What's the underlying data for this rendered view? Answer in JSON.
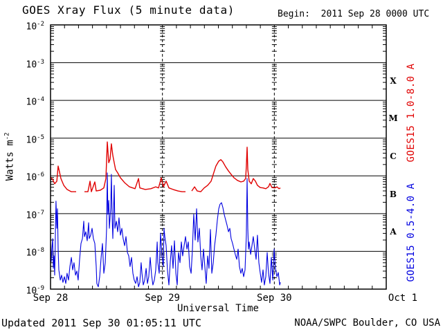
{
  "header": {
    "title": "GOES Xray Flux (5 minute data)",
    "begin_label": "Begin:  2011 Sep 28 0000 UTC"
  },
  "footer": {
    "updated": "Updated 2011 Sep 30 01:05:11 UTC",
    "credit": "NOAA/SWPC Boulder, CO USA"
  },
  "colors": {
    "long_channel": "#e00000",
    "short_channel": "#0000e0",
    "axis": "#000000",
    "background": "#ffffff"
  },
  "chart_data": {
    "type": "line",
    "title": "GOES Xray Flux (5 minute data)",
    "xlabel": "Universal Time",
    "ylabel_base": "Watts m",
    "ylabel_exp": "-2",
    "x_unit": "days since 2011 Sep 28 0000 UTC",
    "xlim": [
      0,
      3
    ],
    "ylim": [
      1e-09,
      0.01
    ],
    "y_tick_exponents": [
      -2,
      -3,
      -4,
      -5,
      -6,
      -7,
      -8,
      -9
    ],
    "x_ticks": [
      {
        "label": "Sep 28",
        "t": 0,
        "dx": 0
      },
      {
        "label": "Sep 29",
        "t": 1,
        "dx": 0
      },
      {
        "label": "Sep 30",
        "t": 2,
        "dx": 0
      },
      {
        "label": "Oct 1",
        "t": 3,
        "dx": 24
      }
    ],
    "flare_classes": [
      {
        "label": "X",
        "center_exp": -3.5
      },
      {
        "label": "M",
        "center_exp": -4.5
      },
      {
        "label": "C",
        "center_exp": -5.5
      },
      {
        "label": "B",
        "center_exp": -6.5
      },
      {
        "label": "A",
        "center_exp": -7.5
      }
    ],
    "grid": {
      "h_line_exponents": [
        -3,
        -4,
        -5,
        -6,
        -7,
        -8
      ],
      "v_dashed_t": [
        1,
        2
      ],
      "time_tick_hours": 3
    },
    "series": [
      {
        "name": "GOES15 1.0-8.0 A",
        "color": "#e00000",
        "width": 1.4,
        "points": [
          [
            0.0,
            -6.03
          ],
          [
            0.019,
            -6.1
          ],
          [
            0.037,
            -6.21
          ],
          [
            0.056,
            -6.14
          ],
          [
            0.068,
            -5.74
          ],
          [
            0.08,
            -5.89
          ],
          [
            0.093,
            -6.07
          ],
          [
            0.118,
            -6.25
          ],
          [
            0.148,
            -6.36
          ],
          [
            0.186,
            -6.42
          ],
          [
            0.229,
            -6.42
          ],
          null,
          [
            0.303,
            -6.42
          ],
          [
            0.334,
            -6.42
          ],
          [
            0.353,
            -6.14
          ],
          [
            0.365,
            -6.42
          ],
          [
            0.396,
            -6.16
          ],
          [
            0.408,
            -6.4
          ],
          [
            0.445,
            -6.38
          ],
          [
            0.476,
            -6.32
          ],
          [
            0.495,
            -6.07
          ],
          [
            0.507,
            -5.1
          ],
          [
            0.52,
            -5.65
          ],
          [
            0.532,
            -5.56
          ],
          [
            0.544,
            -5.15
          ],
          [
            0.557,
            -5.46
          ],
          [
            0.569,
            -5.65
          ],
          [
            0.581,
            -5.83
          ],
          [
            0.6,
            -5.92
          ],
          [
            0.625,
            -6.05
          ],
          [
            0.662,
            -6.18
          ],
          [
            0.705,
            -6.29
          ],
          [
            0.755,
            -6.34
          ],
          [
            0.786,
            -6.07
          ],
          [
            0.798,
            -6.32
          ],
          [
            0.847,
            -6.36
          ],
          [
            0.897,
            -6.34
          ],
          [
            0.94,
            -6.29
          ],
          [
            0.965,
            -6.32
          ],
          [
            0.99,
            -6.05
          ],
          [
            1.008,
            -6.29
          ],
          [
            1.033,
            -6.14
          ],
          [
            1.058,
            -6.32
          ],
          [
            1.095,
            -6.36
          ],
          [
            1.138,
            -6.4
          ],
          [
            1.175,
            -6.42
          ],
          [
            1.206,
            -6.42
          ],
          null,
          [
            1.262,
            -6.4
          ],
          [
            1.287,
            -6.29
          ],
          [
            1.311,
            -6.4
          ],
          [
            1.342,
            -6.42
          ],
          [
            1.373,
            -6.32
          ],
          [
            1.404,
            -6.25
          ],
          [
            1.435,
            -6.14
          ],
          [
            1.454,
            -5.96
          ],
          [
            1.478,
            -5.74
          ],
          [
            1.503,
            -5.61
          ],
          [
            1.522,
            -5.57
          ],
          [
            1.54,
            -5.63
          ],
          [
            1.565,
            -5.76
          ],
          [
            1.59,
            -5.87
          ],
          [
            1.614,
            -5.96
          ],
          [
            1.639,
            -6.05
          ],
          [
            1.67,
            -6.12
          ],
          [
            1.701,
            -6.16
          ],
          [
            1.726,
            -6.14
          ],
          [
            1.744,
            -6.07
          ],
          [
            1.75,
            -5.74
          ],
          [
            1.757,
            -5.24
          ],
          [
            1.763,
            -5.83
          ],
          [
            1.775,
            -6.14
          ],
          [
            1.794,
            -6.21
          ],
          [
            1.812,
            -6.07
          ],
          [
            1.831,
            -6.14
          ],
          [
            1.849,
            -6.25
          ],
          [
            1.874,
            -6.31
          ],
          [
            1.899,
            -6.32
          ],
          [
            1.924,
            -6.34
          ],
          [
            1.948,
            -6.29
          ],
          [
            1.961,
            -6.2
          ],
          [
            1.979,
            -6.31
          ],
          [
            2.004,
            -6.32
          ],
          [
            2.023,
            -6.29
          ],
          [
            2.041,
            -6.34
          ],
          [
            2.054,
            -6.32
          ]
        ]
      },
      {
        "name": "GOES15 0.5-4.0 A",
        "color": "#0000e0",
        "width": 1.1,
        "points": [
          [
            0.0,
            -7.79
          ],
          [
            0.006,
            -8.27
          ],
          [
            0.012,
            -7.94
          ],
          [
            0.019,
            -7.66
          ],
          [
            0.025,
            -8.45
          ],
          [
            0.031,
            -8.12
          ],
          [
            0.037,
            -8.63
          ],
          [
            0.043,
            -7.57
          ],
          [
            0.049,
            -6.67
          ],
          [
            0.056,
            -7.39
          ],
          [
            0.062,
            -6.87
          ],
          [
            0.068,
            -7.94
          ],
          [
            0.074,
            -8.49
          ],
          [
            0.087,
            -8.76
          ],
          [
            0.099,
            -8.63
          ],
          [
            0.111,
            -8.82
          ],
          [
            0.124,
            -8.67
          ],
          [
            0.136,
            -8.85
          ],
          [
            0.148,
            -8.58
          ],
          [
            0.161,
            -8.76
          ],
          [
            0.173,
            -8.4
          ],
          [
            0.186,
            -8.16
          ],
          [
            0.198,
            -8.49
          ],
          [
            0.21,
            -8.3
          ],
          [
            0.223,
            -8.63
          ],
          [
            0.235,
            -8.52
          ],
          [
            0.247,
            -8.76
          ],
          [
            0.26,
            -8.21
          ],
          [
            0.272,
            -7.79
          ],
          [
            0.285,
            -7.66
          ],
          [
            0.297,
            -7.2
          ],
          [
            0.303,
            -7.61
          ],
          [
            0.315,
            -7.48
          ],
          [
            0.328,
            -7.72
          ],
          [
            0.34,
            -7.24
          ],
          [
            0.346,
            -7.66
          ],
          [
            0.359,
            -7.57
          ],
          [
            0.371,
            -7.39
          ],
          [
            0.383,
            -7.66
          ],
          [
            0.396,
            -7.79
          ],
          [
            0.408,
            -8.4
          ],
          [
            0.414,
            -8.85
          ],
          [
            0.427,
            -8.94
          ],
          [
            0.439,
            -8.67
          ],
          [
            0.452,
            -8.16
          ],
          [
            0.464,
            -7.79
          ],
          [
            0.476,
            -8.58
          ],
          [
            0.489,
            -8.3
          ],
          [
            0.501,
            -7.39
          ],
          [
            0.507,
            -5.92
          ],
          [
            0.513,
            -7.02
          ],
          [
            0.52,
            -6.65
          ],
          [
            0.526,
            -7.39
          ],
          [
            0.538,
            -6.84
          ],
          [
            0.544,
            -5.96
          ],
          [
            0.55,
            -7.02
          ],
          [
            0.557,
            -7.66
          ],
          [
            0.569,
            -6.25
          ],
          [
            0.575,
            -7.39
          ],
          [
            0.588,
            -7.2
          ],
          [
            0.6,
            -7.48
          ],
          [
            0.612,
            -7.11
          ],
          [
            0.625,
            -7.57
          ],
          [
            0.637,
            -7.39
          ],
          [
            0.649,
            -7.66
          ],
          [
            0.662,
            -7.85
          ],
          [
            0.674,
            -7.61
          ],
          [
            0.687,
            -8.03
          ],
          [
            0.699,
            -8.12
          ],
          [
            0.711,
            -8.4
          ],
          [
            0.724,
            -8.16
          ],
          [
            0.736,
            -8.58
          ],
          [
            0.748,
            -8.76
          ],
          [
            0.761,
            -8.85
          ],
          [
            0.773,
            -8.67
          ],
          [
            0.786,
            -8.94
          ],
          [
            0.798,
            -8.82
          ],
          [
            0.81,
            -8.3
          ],
          [
            0.817,
            -8.58
          ],
          [
            0.829,
            -8.89
          ],
          [
            0.841,
            -8.76
          ],
          [
            0.854,
            -8.45
          ],
          [
            0.866,
            -8.85
          ],
          [
            0.878,
            -8.67
          ],
          [
            0.891,
            -8.16
          ],
          [
            0.903,
            -8.63
          ],
          [
            0.915,
            -8.89
          ],
          [
            0.928,
            -8.76
          ],
          [
            0.94,
            -8.49
          ],
          [
            0.953,
            -7.75
          ],
          [
            0.959,
            -8.3
          ],
          [
            0.971,
            -8.58
          ],
          [
            0.983,
            -7.52
          ],
          [
            0.996,
            -8.12
          ],
          [
            1.008,
            -8.4
          ],
          [
            1.014,
            -7.39
          ],
          [
            1.021,
            -7.61
          ],
          [
            1.033,
            -7.85
          ],
          [
            1.045,
            -8.49
          ],
          [
            1.058,
            -8.89
          ],
          [
            1.07,
            -8.27
          ],
          [
            1.082,
            -7.85
          ],
          [
            1.095,
            -8.45
          ],
          [
            1.107,
            -7.72
          ],
          [
            1.12,
            -8.58
          ],
          [
            1.132,
            -8.89
          ],
          [
            1.144,
            -8.03
          ],
          [
            1.157,
            -8.3
          ],
          [
            1.169,
            -7.75
          ],
          [
            1.181,
            -8.12
          ],
          [
            1.194,
            -7.85
          ],
          [
            1.206,
            -7.61
          ],
          [
            1.219,
            -7.94
          ],
          [
            1.231,
            -7.75
          ],
          [
            1.243,
            -8.4
          ],
          [
            1.256,
            -8.58
          ],
          [
            1.268,
            -7.94
          ],
          [
            1.28,
            -7.02
          ],
          [
            1.293,
            -7.7
          ],
          [
            1.305,
            -6.87
          ],
          [
            1.317,
            -7.75
          ],
          [
            1.33,
            -7.39
          ],
          [
            1.342,
            -8.12
          ],
          [
            1.354,
            -8.49
          ],
          [
            1.367,
            -7.94
          ],
          [
            1.379,
            -8.4
          ],
          [
            1.391,
            -8.85
          ],
          [
            1.404,
            -8.12
          ],
          [
            1.416,
            -8.45
          ],
          [
            1.429,
            -7.42
          ],
          [
            1.441,
            -8.58
          ],
          [
            1.454,
            -8.3
          ],
          [
            1.466,
            -7.85
          ],
          [
            1.478,
            -7.57
          ],
          [
            1.491,
            -7.17
          ],
          [
            1.503,
            -6.87
          ],
          [
            1.515,
            -6.75
          ],
          [
            1.528,
            -6.71
          ],
          [
            1.54,
            -6.84
          ],
          [
            1.552,
            -7.02
          ],
          [
            1.565,
            -7.17
          ],
          [
            1.577,
            -7.3
          ],
          [
            1.59,
            -7.48
          ],
          [
            1.602,
            -7.39
          ],
          [
            1.614,
            -7.66
          ],
          [
            1.627,
            -7.79
          ],
          [
            1.639,
            -7.94
          ],
          [
            1.651,
            -8.08
          ],
          [
            1.664,
            -8.21
          ],
          [
            1.676,
            -7.94
          ],
          [
            1.688,
            -8.4
          ],
          [
            1.701,
            -8.58
          ],
          [
            1.713,
            -8.45
          ],
          [
            1.726,
            -8.67
          ],
          [
            1.738,
            -8.49
          ],
          [
            1.75,
            -7.57
          ],
          [
            1.757,
            -6.07
          ],
          [
            1.763,
            -7.39
          ],
          [
            1.769,
            -7.94
          ],
          [
            1.775,
            -7.75
          ],
          [
            1.788,
            -8.08
          ],
          [
            1.8,
            -7.85
          ],
          [
            1.812,
            -7.61
          ],
          [
            1.825,
            -7.94
          ],
          [
            1.837,
            -8.21
          ],
          [
            1.849,
            -7.57
          ],
          [
            1.862,
            -8.3
          ],
          [
            1.874,
            -8.58
          ],
          [
            1.886,
            -8.82
          ],
          [
            1.899,
            -8.49
          ],
          [
            1.911,
            -8.89
          ],
          [
            1.924,
            -8.67
          ],
          [
            1.936,
            -8.03
          ],
          [
            1.948,
            -8.58
          ],
          [
            1.961,
            -8.85
          ],
          [
            1.973,
            -8.16
          ],
          [
            1.986,
            -8.76
          ],
          [
            1.998,
            -7.94
          ],
          [
            2.01,
            -8.45
          ],
          [
            2.023,
            -8.67
          ],
          [
            2.035,
            -8.56
          ],
          [
            2.048,
            -8.89
          ],
          [
            2.054,
            -8.82
          ]
        ]
      }
    ],
    "legend_position": "right-vertical",
    "grid_on": true
  }
}
